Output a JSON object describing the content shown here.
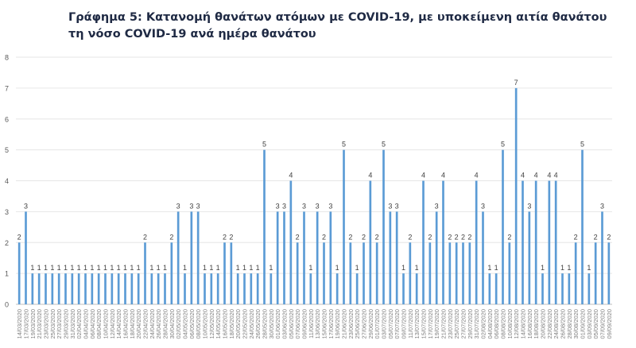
{
  "chart_data": {
    "type": "bar",
    "title": "Γράφημα 5: Κατανομή θανάτων ατόμων με COVID-19, με υποκείμενη αιτία θανάτου τη νόσο COVID-19 ανά ημέρα θανάτου",
    "xlabel": "",
    "ylabel": "",
    "ylim": [
      0,
      8
    ],
    "yticks": [
      0,
      1,
      2,
      3,
      4,
      5,
      6,
      7,
      8
    ],
    "grid": true,
    "legend": "none",
    "bar_color": "#5b9bd5",
    "values": [
      2,
      3,
      1,
      1,
      1,
      1,
      1,
      1,
      1,
      1,
      1,
      1,
      1,
      1,
      1,
      1,
      1,
      1,
      1,
      2,
      1,
      1,
      1,
      2,
      3,
      1,
      3,
      3,
      1,
      1,
      1,
      2,
      2,
      1,
      1,
      1,
      1,
      5,
      1,
      3,
      3,
      4,
      2,
      3,
      1,
      3,
      2,
      3,
      1,
      5,
      2,
      1,
      2,
      4,
      2,
      5,
      3,
      3,
      1,
      2,
      1,
      4,
      2,
      3,
      4,
      2,
      2,
      2,
      2,
      4,
      3,
      1,
      1,
      5,
      2,
      7,
      4,
      3,
      4,
      1,
      4,
      4,
      1,
      1,
      2,
      5,
      1,
      2,
      3,
      2
    ],
    "categories": [
      "14/03/2020",
      "17/03/2020",
      "19/03/2020",
      "21/03/2020",
      "23/03/2020",
      "25/03/2020",
      "27/03/2020",
      "29/03/2020",
      "31/03/2020",
      "02/04/2020",
      "04/04/2020",
      "06/04/2020",
      "08/04/2020",
      "10/04/2020",
      "12/04/2020",
      "14/04/2020",
      "16/04/2020",
      "18/04/2020",
      "20/04/2020",
      "22/04/2020",
      "24/04/2020",
      "26/04/2020",
      "28/04/2020",
      "30/04/2020",
      "02/05/2020",
      "04/05/2020",
      "06/05/2020",
      "08/05/2020",
      "10/05/2020",
      "12/05/2020",
      "14/05/2020",
      "16/05/2020",
      "18/05/2020",
      "20/05/2020",
      "22/05/2020",
      "24/05/2020",
      "26/05/2020",
      "28/05/2020",
      "30/05/2020",
      "01/06/2020",
      "03/06/2020",
      "05/06/2020",
      "07/06/2020",
      "09/06/2020",
      "11/06/2020",
      "13/06/2020",
      "15/06/2020",
      "17/06/2020",
      "19/06/2020",
      "21/06/2020",
      "23/06/2020",
      "25/06/2020",
      "27/06/2020",
      "29/06/2020",
      "01/07/2020",
      "03/07/2020",
      "05/07/2020",
      "07/07/2020",
      "09/07/2020",
      "11/07/2020",
      "13/07/2020",
      "15/07/2020",
      "17/07/2020",
      "19/07/2020",
      "21/07/2020",
      "23/07/2020",
      "25/07/2020",
      "27/07/2020",
      "29/07/2020",
      "31/07/2020",
      "02/08/2020",
      "04/08/2020",
      "06/08/2020",
      "08/08/2020",
      "10/08/2020",
      "12/08/2020",
      "14/08/2020",
      "16/08/2020",
      "18/08/2020",
      "20/08/2020",
      "22/08/2020",
      "24/08/2020",
      "26/08/2020",
      "28/08/2020",
      "30/08/2020",
      "01/09/2020",
      "03/09/2020",
      "05/09/2020",
      "07/09/2020",
      "09/09/2020"
    ]
  }
}
